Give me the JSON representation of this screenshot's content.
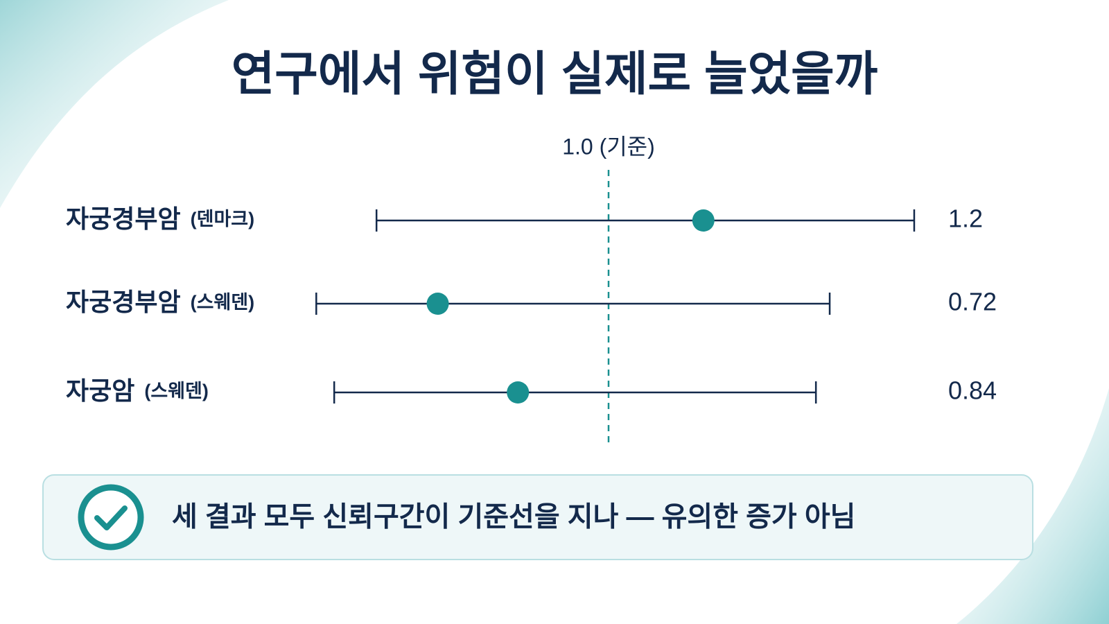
{
  "chart_data": {
    "type": "forest",
    "title": "연구에서 위험이 실제로 늘었을까",
    "categories": [
      "자궁경부암",
      "자궁경부암",
      "자궁암"
    ],
    "subcategories": [
      "(덴마크)",
      "(스웨덴)",
      "(스웨덴)"
    ],
    "values": [
      1.2,
      0.72,
      0.84
    ],
    "lower": [
      0.64,
      0.57,
      0.59
    ],
    "upper": [
      1.8,
      1.53,
      1.49
    ],
    "xscale": "log",
    "xlim": [
      0.5,
      2.0
    ],
    "reference_line": {
      "value": 1,
      "label": "1.0 (기준)"
    },
    "color": "#1a9090",
    "line_color": "#13294b",
    "note": "세 결과 모두 신뢰구간이 기준선을 지나 — 유의한 증가 아님"
  }
}
